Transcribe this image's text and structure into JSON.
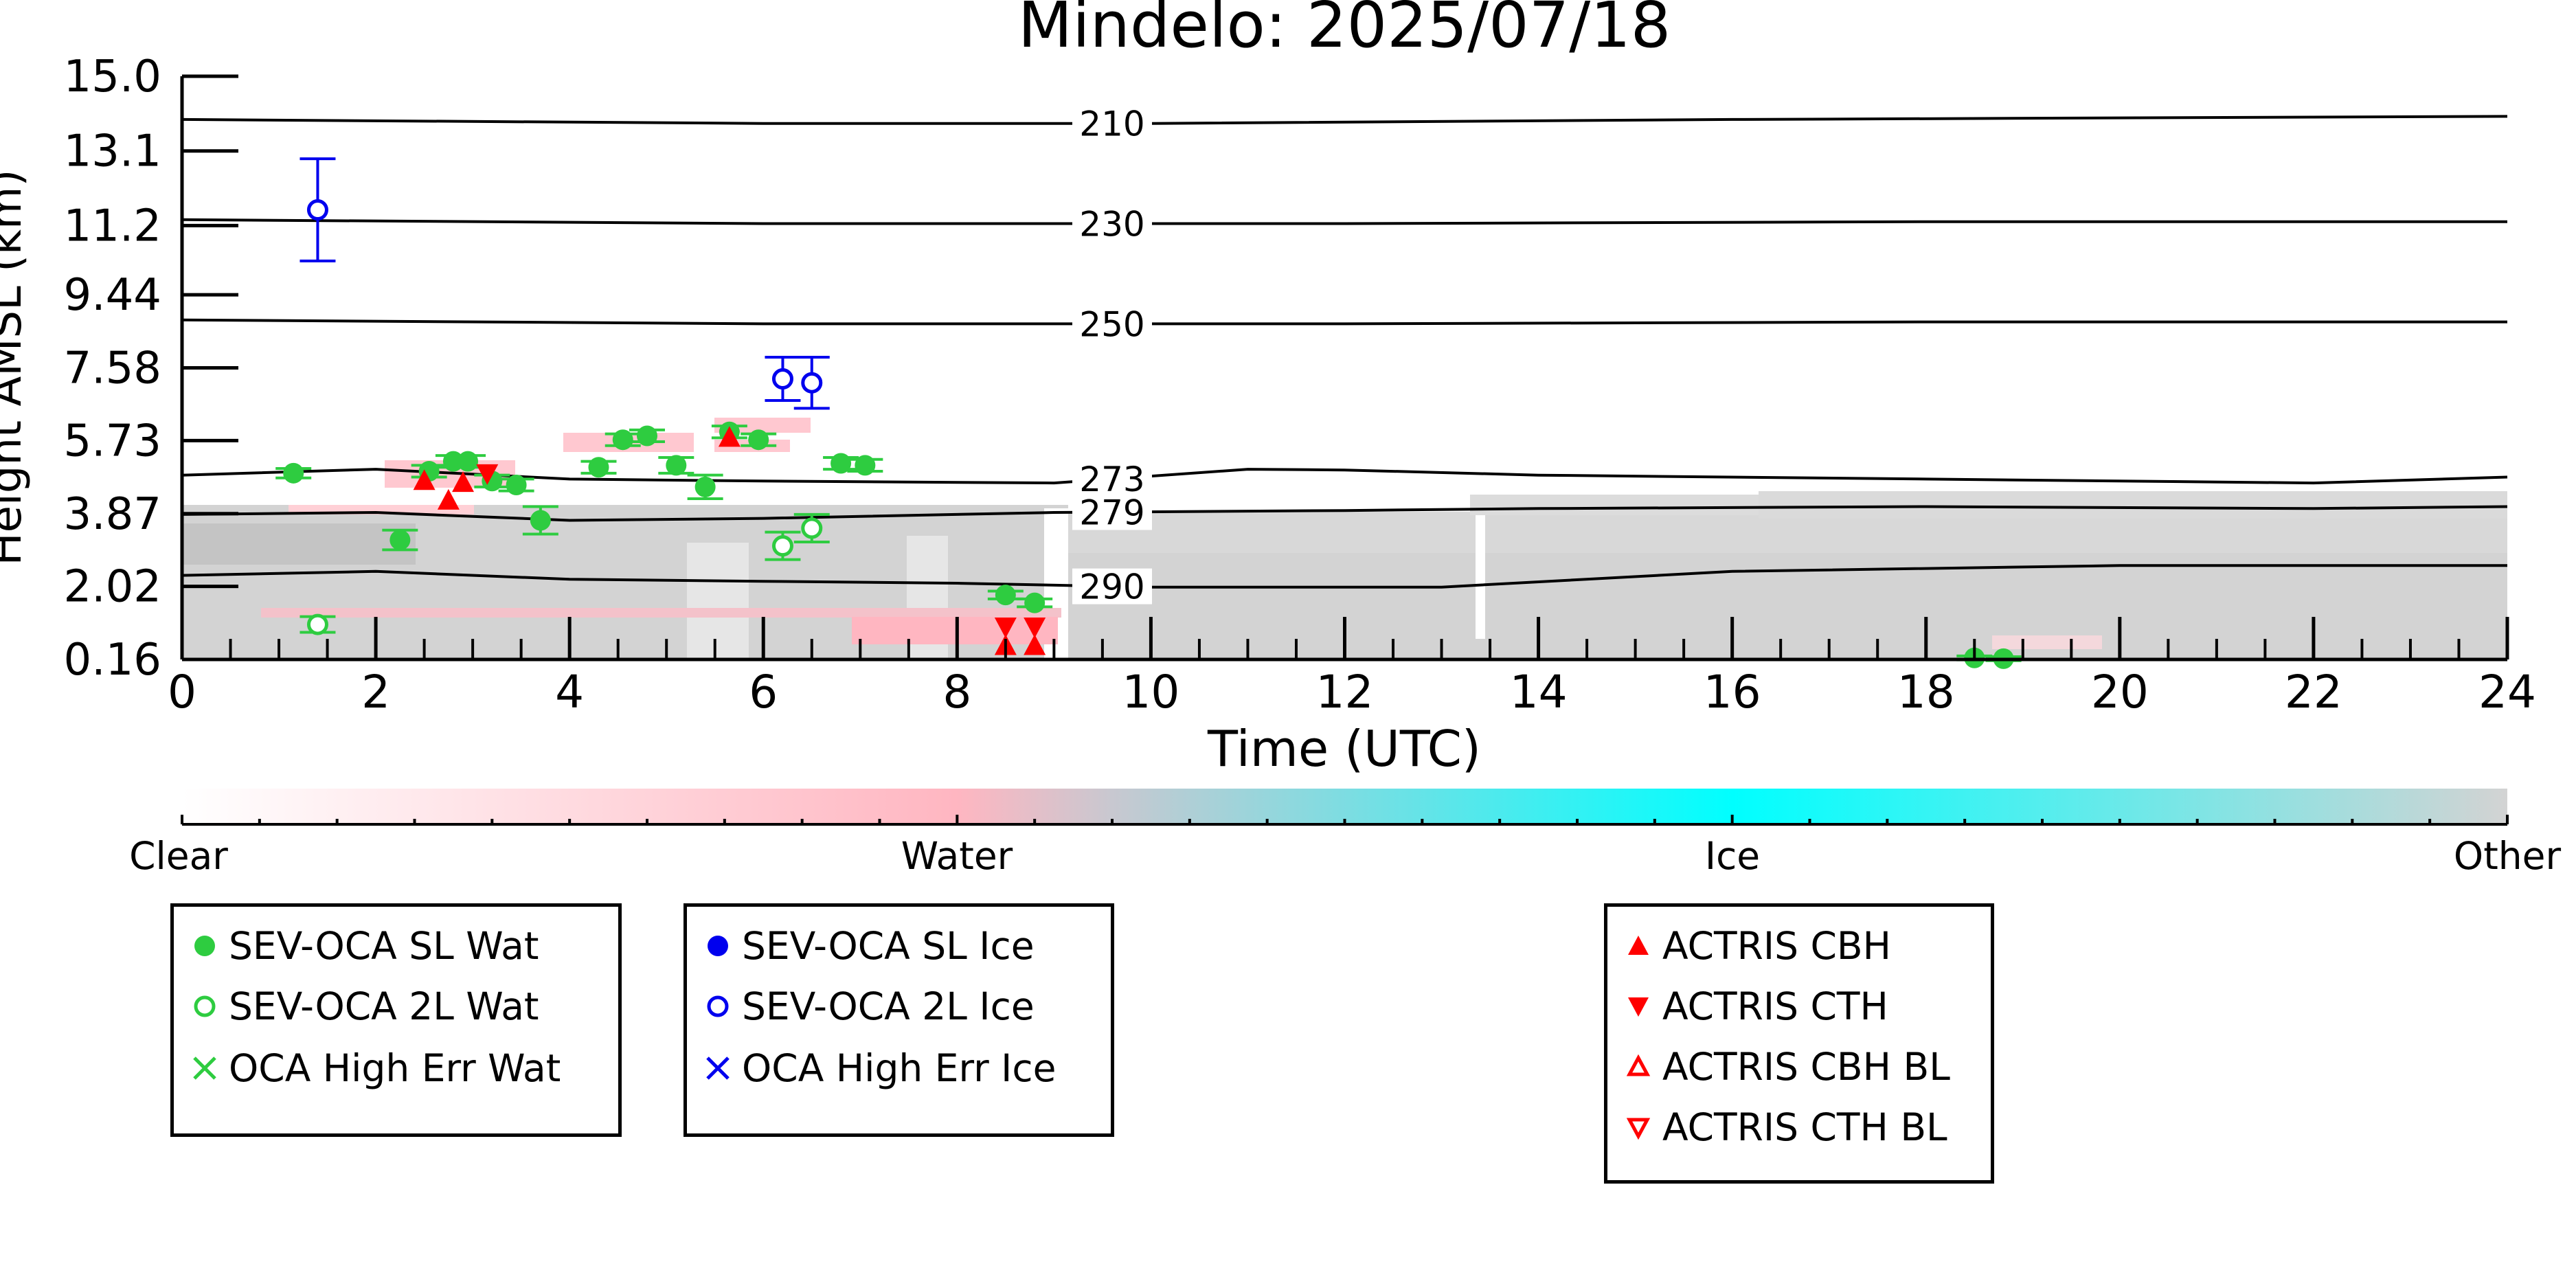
{
  "chart_data": {
    "type": "scatter",
    "title": "Mindelo: 2025/07/18",
    "xlabel": "Time (UTC)",
    "ylabel": "Height AMSL (km)",
    "xlim": [
      0,
      24
    ],
    "ylim": [
      0.16,
      15.0
    ],
    "x_ticks": [
      0,
      2,
      4,
      6,
      8,
      10,
      12,
      14,
      16,
      18,
      20,
      22,
      24
    ],
    "x_tick_labels": [
      "0",
      "2",
      "4",
      "6",
      "8",
      "10",
      "12",
      "14",
      "16",
      "18",
      "20",
      "22",
      "24"
    ],
    "y_ticks": [
      0.16,
      2.02,
      3.87,
      5.73,
      7.58,
      9.44,
      11.2,
      13.1,
      15.0
    ],
    "y_tick_labels": [
      "0.16",
      "2.02",
      "3.87",
      "5.73",
      "7.58",
      "9.44",
      "11.2",
      "13.1",
      "15.0"
    ],
    "grid": false,
    "isotherms": [
      {
        "label": "210",
        "points": [
          [
            0,
            13.9
          ],
          [
            6,
            13.8
          ],
          [
            10,
            13.8
          ],
          [
            16,
            13.9
          ],
          [
            24,
            13.98
          ]
        ]
      },
      {
        "label": "230",
        "points": [
          [
            0,
            11.35
          ],
          [
            6,
            11.25
          ],
          [
            12,
            11.25
          ],
          [
            18,
            11.3
          ],
          [
            24,
            11.3
          ]
        ]
      },
      {
        "label": "250",
        "points": [
          [
            0,
            8.8
          ],
          [
            6,
            8.7
          ],
          [
            12,
            8.7
          ],
          [
            18,
            8.75
          ],
          [
            24,
            8.75
          ]
        ]
      },
      {
        "label": "273",
        "points": [
          [
            0,
            4.85
          ],
          [
            2,
            5.0
          ],
          [
            4,
            4.75
          ],
          [
            6,
            4.7
          ],
          [
            9,
            4.65
          ],
          [
            11,
            5.0
          ],
          [
            12,
            4.98
          ],
          [
            14,
            4.85
          ],
          [
            18,
            4.75
          ],
          [
            22,
            4.65
          ],
          [
            24,
            4.8
          ]
        ]
      },
      {
        "label": "279",
        "points": [
          [
            0,
            3.85
          ],
          [
            2,
            3.9
          ],
          [
            4,
            3.7
          ],
          [
            6,
            3.75
          ],
          [
            9,
            3.9
          ],
          [
            12,
            3.95
          ],
          [
            14,
            4.0
          ],
          [
            18,
            4.05
          ],
          [
            22,
            4.0
          ],
          [
            24,
            4.05
          ]
        ]
      },
      {
        "label": "290",
        "points": [
          [
            0,
            2.3
          ],
          [
            2,
            2.4
          ],
          [
            4,
            2.2
          ],
          [
            6,
            2.15
          ],
          [
            8,
            2.1
          ],
          [
            10,
            2.0
          ],
          [
            13,
            2.0
          ],
          [
            16,
            2.4
          ],
          [
            20,
            2.55
          ],
          [
            24,
            2.55
          ]
        ]
      }
    ],
    "series": [
      {
        "name": "SEV-OCA SL Wat",
        "marker": "filled-circle",
        "color": "#2ecc40",
        "points": [
          {
            "x": 1.15,
            "y": 4.9,
            "err": 0.12
          },
          {
            "x": 2.25,
            "y": 3.2,
            "err": 0.25
          },
          {
            "x": 2.55,
            "y": 4.95,
            "err": 0.15
          },
          {
            "x": 2.8,
            "y": 5.2,
            "err": 0.15
          },
          {
            "x": 2.95,
            "y": 5.2,
            "err": 0.15
          },
          {
            "x": 3.2,
            "y": 4.7,
            "err": 0.15
          },
          {
            "x": 3.45,
            "y": 4.6,
            "err": 0.15
          },
          {
            "x": 3.7,
            "y": 3.7,
            "err": 0.35
          },
          {
            "x": 4.3,
            "y": 5.05,
            "err": 0.15
          },
          {
            "x": 4.55,
            "y": 5.75,
            "err": 0.15
          },
          {
            "x": 4.8,
            "y": 5.85,
            "err": 0.15
          },
          {
            "x": 5.1,
            "y": 5.1,
            "err": 0.2
          },
          {
            "x": 5.4,
            "y": 4.55,
            "err": 0.3
          },
          {
            "x": 5.65,
            "y": 5.95,
            "err": 0.15
          },
          {
            "x": 5.95,
            "y": 5.75,
            "err": 0.15
          },
          {
            "x": 6.8,
            "y": 5.15,
            "err": 0.15
          },
          {
            "x": 7.05,
            "y": 5.1,
            "err": 0.15
          },
          {
            "x": 8.5,
            "y": 1.8,
            "err": 0.1
          },
          {
            "x": 8.8,
            "y": 1.6,
            "err": 0.1
          },
          {
            "x": 18.5,
            "y": 0.2,
            "err": 0.05
          },
          {
            "x": 18.8,
            "y": 0.18,
            "err": 0.05
          }
        ]
      },
      {
        "name": "SEV-OCA 2L Wat",
        "marker": "open-circle",
        "color": "#2ecc40",
        "points": [
          {
            "x": 1.4,
            "y": 1.05,
            "err": 0.2
          },
          {
            "x": 6.2,
            "y": 3.05,
            "err": 0.35
          },
          {
            "x": 6.5,
            "y": 3.5,
            "err": 0.35
          }
        ]
      },
      {
        "name": "OCA High Err Wat",
        "marker": "x",
        "color": "#2ecc40",
        "points": []
      },
      {
        "name": "SEV-OCA SL Ice",
        "marker": "filled-circle",
        "color": "#0000ee",
        "points": []
      },
      {
        "name": "SEV-OCA 2L Ice",
        "marker": "open-circle",
        "color": "#0000ee",
        "points": [
          {
            "x": 1.4,
            "y": 11.6,
            "err": 1.3
          },
          {
            "x": 6.2,
            "y": 7.3,
            "err": 0.55
          },
          {
            "x": 6.5,
            "y": 7.2,
            "err": 0.65
          }
        ]
      },
      {
        "name": "OCA High Err Ice",
        "marker": "x",
        "color": "#0000ee",
        "points": []
      },
      {
        "name": "ACTRIS CBH",
        "marker": "triangle-up",
        "color": "#ff0000",
        "points": [
          {
            "x": 2.5,
            "y": 4.7
          },
          {
            "x": 2.75,
            "y": 4.2
          },
          {
            "x": 2.9,
            "y": 4.65
          },
          {
            "x": 5.65,
            "y": 5.8
          },
          {
            "x": 8.5,
            "y": 0.5
          },
          {
            "x": 8.8,
            "y": 0.5
          }
        ]
      },
      {
        "name": "ACTRIS CTH",
        "marker": "triangle-down",
        "color": "#ff0000",
        "points": [
          {
            "x": 3.15,
            "y": 4.9
          },
          {
            "x": 8.5,
            "y": 1.0
          },
          {
            "x": 8.8,
            "y": 1.0
          }
        ]
      },
      {
        "name": "ACTRIS CBH BL",
        "marker": "open-triangle-up",
        "color": "#ff0000",
        "points": []
      },
      {
        "name": "ACTRIS CTH BL",
        "marker": "open-triangle-down",
        "color": "#ff0000",
        "points": []
      }
    ],
    "colorbar": {
      "labels": [
        "Clear",
        "Water",
        "Ice",
        "Other"
      ],
      "colors": [
        "#ffffff",
        "#ffb6c1",
        "#00ffff",
        "#d3d3d3"
      ]
    },
    "legend_groups": [
      [
        "SEV-OCA SL Wat",
        "SEV-OCA 2L Wat",
        "OCA High Err Wat"
      ],
      [
        "SEV-OCA SL Ice",
        "SEV-OCA 2L Ice",
        "OCA High Err Ice"
      ],
      [
        "ACTRIS CBH",
        "ACTRIS CTH",
        "ACTRIS CBH BL",
        "ACTRIS CTH BL"
      ]
    ]
  }
}
